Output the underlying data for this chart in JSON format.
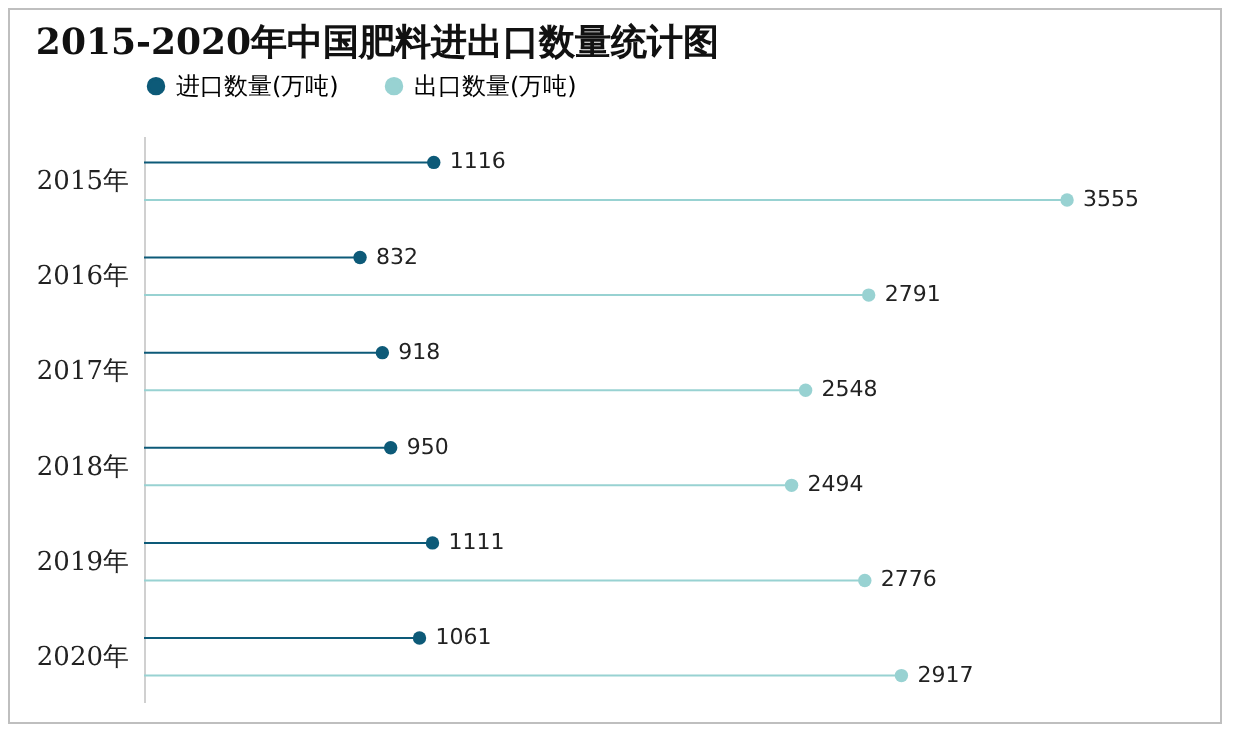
{
  "chart_data": {
    "type": "lollipop",
    "orientation": "horizontal",
    "title": "2015-2020年中国肥料进出口数量统计图",
    "categories": [
      "2015年",
      "2016年",
      "2017年",
      "2018年",
      "2019年",
      "2020年"
    ],
    "series": [
      {
        "name": "进口数量(万吨)",
        "color": "#0d5a78",
        "values": [
          1116,
          832,
          918,
          950,
          1111,
          1061
        ]
      },
      {
        "name": "出口数量(万吨)",
        "color": "#98d2d2",
        "values": [
          3555,
          2791,
          2548,
          2494,
          2776,
          2917
        ]
      }
    ],
    "data_labels": true,
    "legend": "top",
    "grid": false,
    "marker": "circle"
  }
}
